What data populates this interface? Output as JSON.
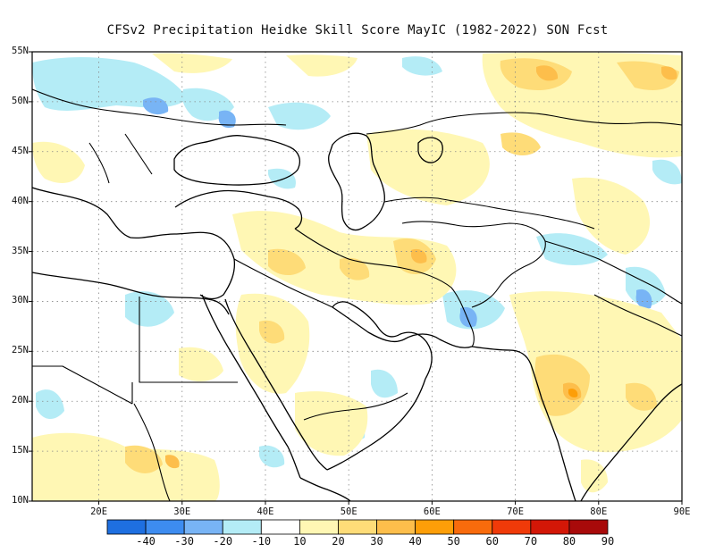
{
  "title": "CFSv2  Precipitation Heidke Skill Score MayIC (1982-2022) SON Fcst",
  "map": {
    "projection": "equirectangular",
    "lon_range": [
      12,
      90
    ],
    "lat_range": [
      10,
      55
    ],
    "lat_labels": [
      "55N",
      "50N",
      "45N",
      "40N",
      "35N",
      "30N",
      "25N",
      "20N",
      "15N",
      "10N"
    ],
    "lat_values": [
      55,
      50,
      45,
      40,
      35,
      30,
      25,
      20,
      15,
      10
    ],
    "lon_labels": [
      "20E",
      "30E",
      "40E",
      "50E",
      "60E",
      "70E",
      "80E",
      "90E"
    ],
    "lon_values": [
      20,
      30,
      40,
      50,
      60,
      70,
      80,
      90
    ],
    "grid": "dotted",
    "field": "Heidke skill score shaded field",
    "coastlines": true,
    "country_borders": true
  },
  "colorbar": {
    "labels": [
      "-40",
      "-30",
      "-20",
      "-10",
      "10",
      "20",
      "30",
      "40",
      "50",
      "60",
      "70",
      "80",
      "90"
    ],
    "colors": [
      "#1e6fe0",
      "#3d8cf0",
      "#78b4f5",
      "#b4ecf6",
      "#ffffff",
      "#fff7b4",
      "#fedc78",
      "#fdbe4b",
      "#fd9e08",
      "#f86b0c",
      "#f03a09",
      "#d31707",
      "#a80a0a"
    ]
  }
}
